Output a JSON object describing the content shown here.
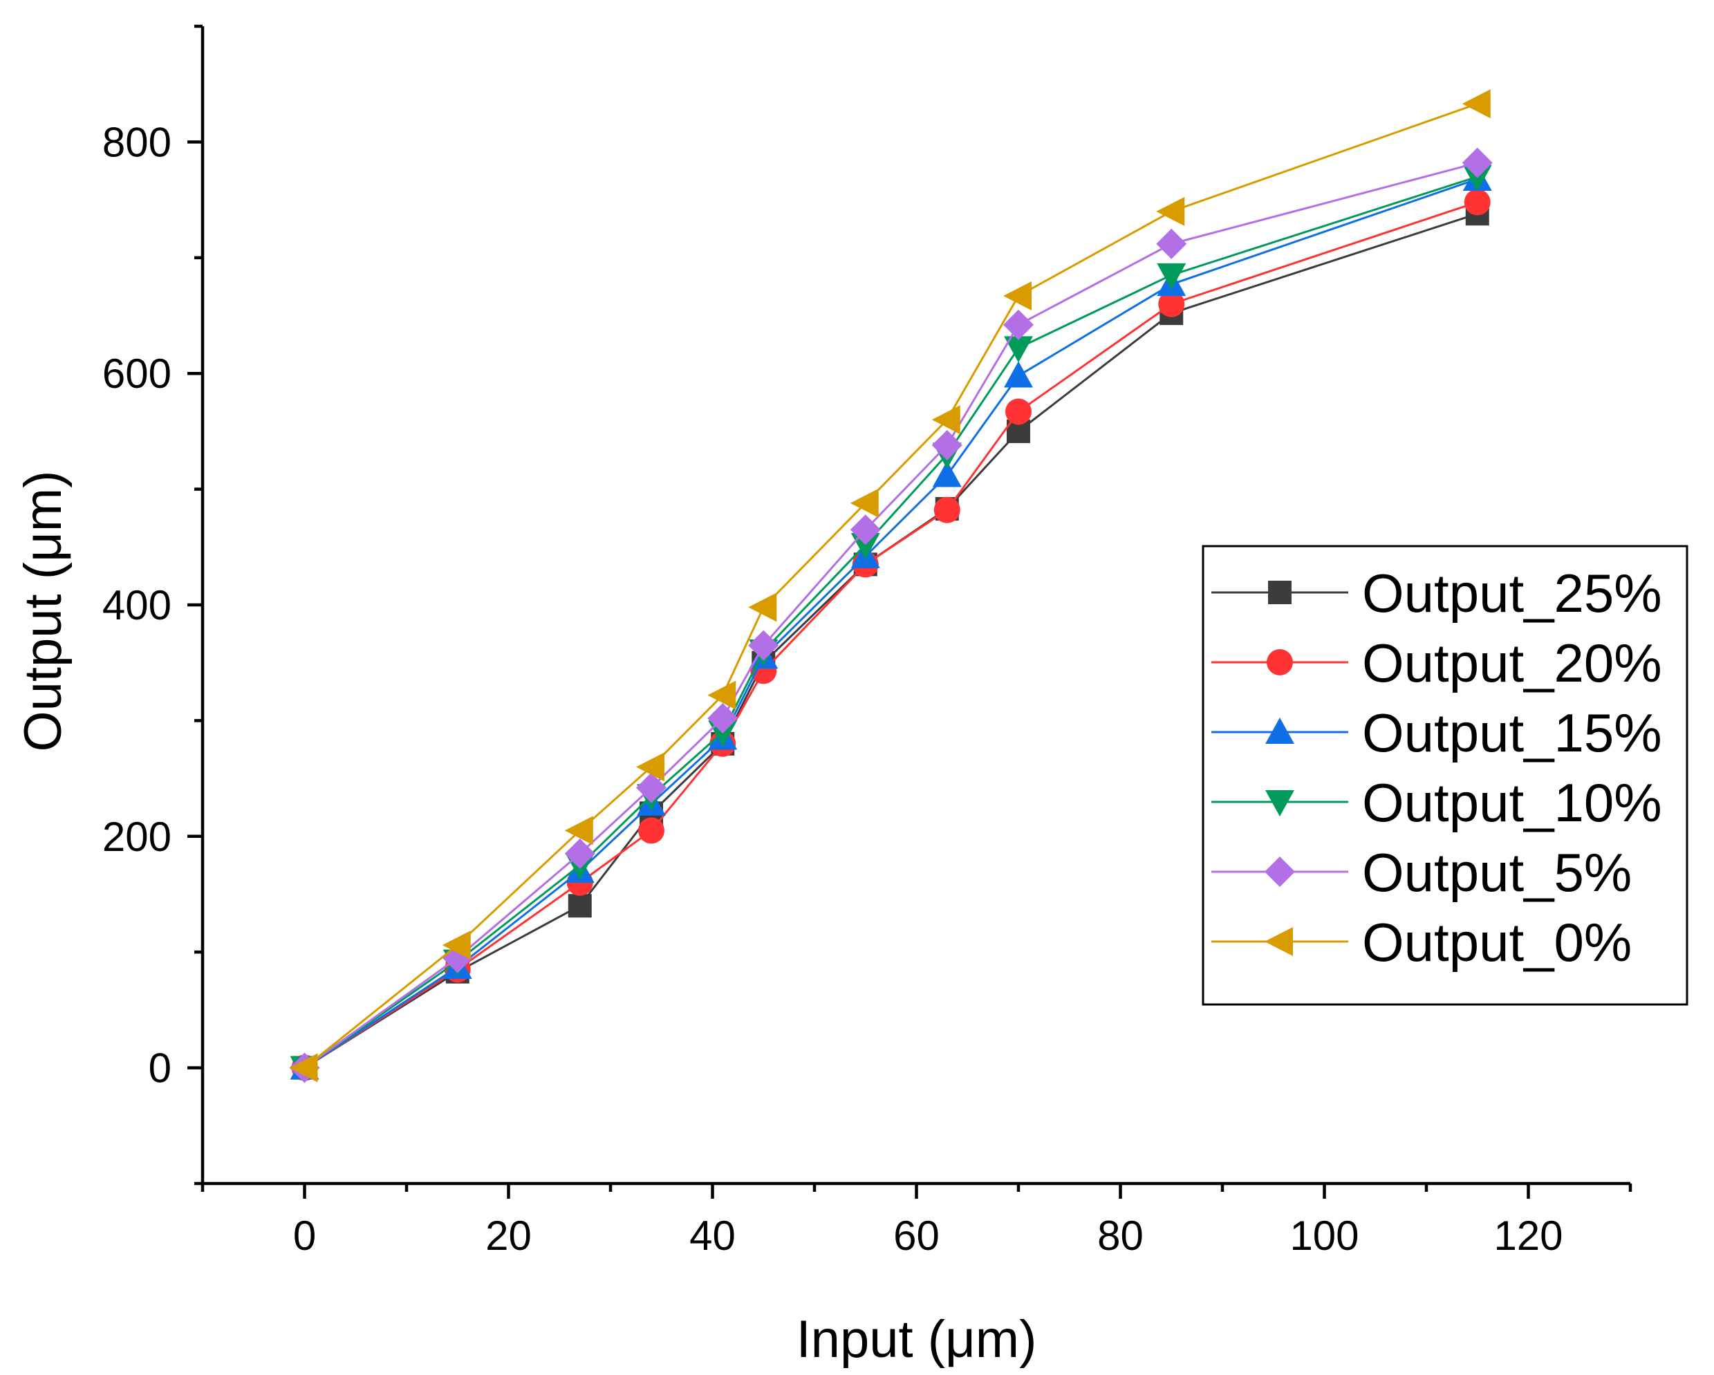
{
  "chart_data": {
    "type": "line",
    "title": "",
    "xlabel": "Input (μm)",
    "ylabel": "Output (μm)",
    "xlim": [
      -10,
      130
    ],
    "ylim": [
      -100,
      900
    ],
    "xticks": [
      0,
      20,
      40,
      60,
      80,
      100,
      120
    ],
    "xtick_labels": [
      "0",
      "20",
      "40",
      "60",
      "80",
      "100",
      "120"
    ],
    "yticks": [
      0,
      200,
      400,
      600,
      800
    ],
    "ytick_labels": [
      "0",
      "200",
      "400",
      "600",
      "800"
    ],
    "x_minor_step": 10,
    "y_minor_step": 100,
    "grid": false,
    "legend_position": "right",
    "x": [
      0,
      15,
      27,
      34,
      41,
      45,
      55,
      63,
      70,
      85,
      115
    ],
    "series": [
      {
        "name": "Output_25%",
        "color": "#3c3c3c",
        "marker": "square",
        "values": [
          0,
          83,
          140,
          220,
          280,
          350,
          435,
          483,
          550,
          652,
          738
        ]
      },
      {
        "name": "Output_20%",
        "color": "#ff3333",
        "marker": "circle",
        "values": [
          0,
          85,
          160,
          205,
          280,
          343,
          435,
          482,
          567,
          660,
          748
        ]
      },
      {
        "name": "Output_15%",
        "color": "#0f6fe6",
        "marker": "triangle-up",
        "values": [
          0,
          87,
          170,
          228,
          285,
          355,
          442,
          512,
          598,
          677,
          768
        ]
      },
      {
        "name": "Output_10%",
        "color": "#009a5a",
        "marker": "triangle-down",
        "values": [
          0,
          92,
          175,
          235,
          290,
          360,
          452,
          530,
          622,
          685,
          770
        ]
      },
      {
        "name": "Output_5%",
        "color": "#b36fe6",
        "marker": "diamond",
        "values": [
          0,
          95,
          185,
          242,
          302,
          365,
          465,
          538,
          642,
          712,
          782
        ]
      },
      {
        "name": "Output_0%",
        "color": "#d89c00",
        "marker": "triangle-left",
        "values": [
          0,
          106,
          205,
          260,
          322,
          398,
          488,
          560,
          667,
          740,
          833
        ]
      }
    ]
  }
}
